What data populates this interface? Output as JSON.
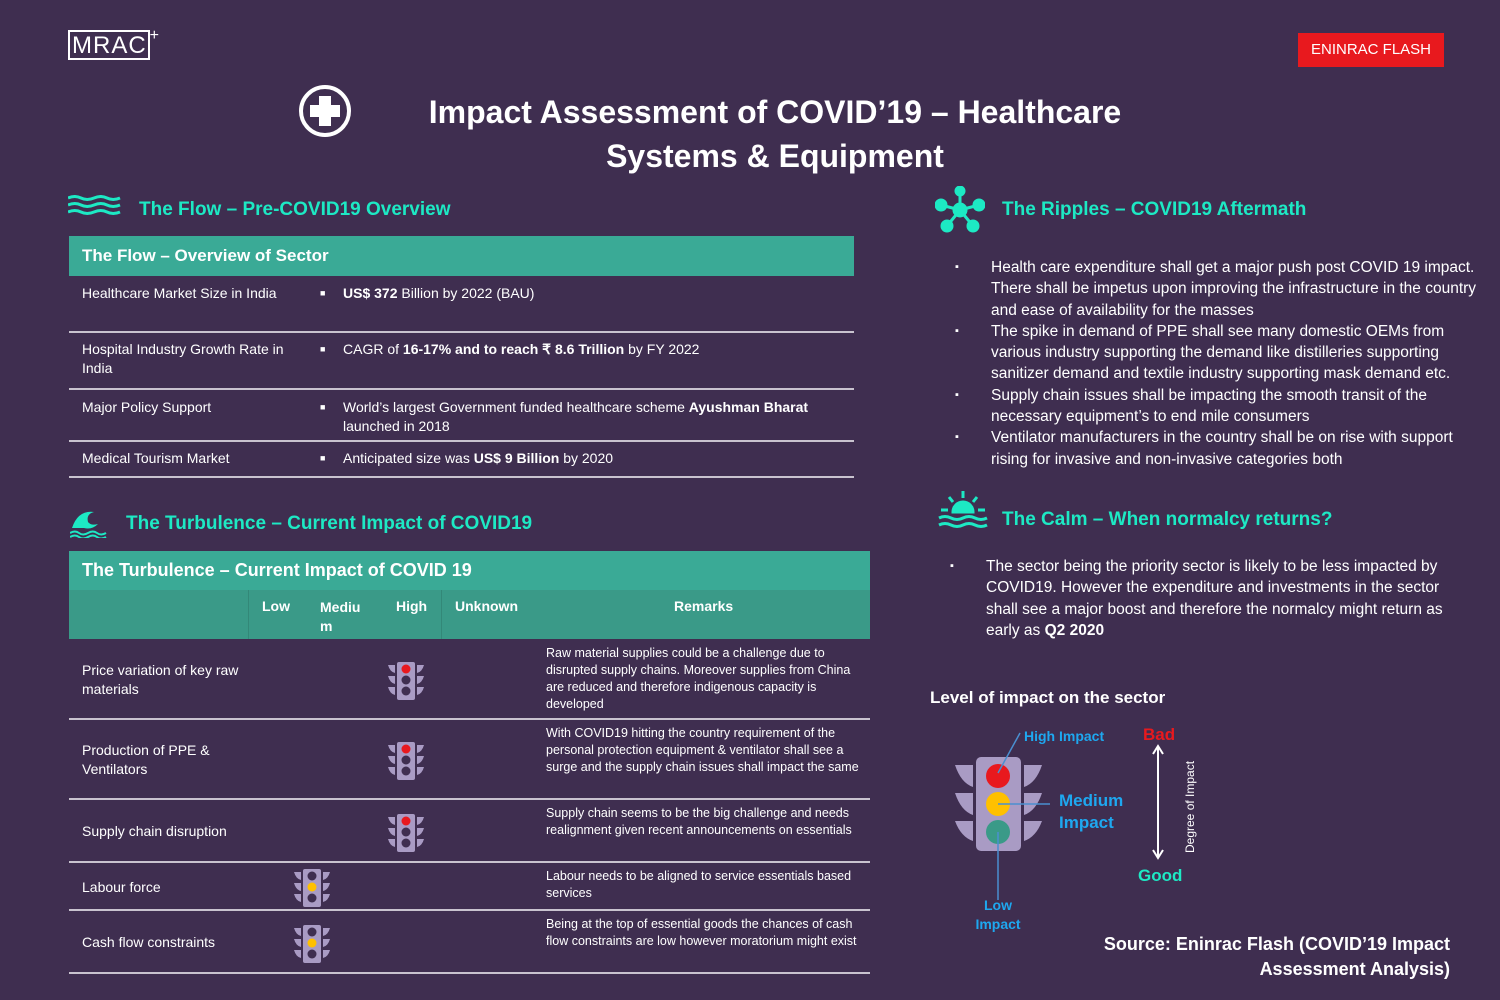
{
  "header": {
    "logo": "MRAC",
    "logo_plus": "+",
    "badge": "ENINRAC FLASH",
    "title": "Impact Assessment of COVID’19 – Healthcare Systems & Equipment"
  },
  "flow": {
    "section_title": "The Flow – Pre-COVID19 Overview",
    "table_title": "The Flow – Overview of Sector",
    "rows": [
      {
        "label": "Healthcare Market Size in India",
        "pre": "",
        "bold": "US$ 372",
        "post": " Billion by 2022 (BAU)"
      },
      {
        "label": "Hospital Industry Growth Rate in India",
        "pre": "CAGR of ",
        "bold": "16-17% and to reach ₹ 8.6 Trillion",
        "post": " by FY 2022"
      },
      {
        "label": "Major Policy Support",
        "pre": "World’s largest Government funded healthcare scheme ",
        "bold": "Ayushman Bharat",
        "post": " launched in 2018"
      },
      {
        "label": "Medical Tourism Market",
        "pre": "Anticipated size was ",
        "bold": "US$ 9 Billion",
        "post": " by 2020"
      }
    ]
  },
  "turbulence": {
    "section_title": "The Turbulence – Current Impact of COVID19",
    "table_title": "The Turbulence – Current Impact of COVID 19",
    "columns": {
      "low": "Low",
      "medium": "Mediu m",
      "high": "High",
      "unknown": "Unknown",
      "remarks": "Remarks"
    },
    "rows": [
      {
        "label": "Price variation of key raw materials",
        "level": "High",
        "lit": "red",
        "remark": "Raw material supplies could be a challenge due to disrupted supply chains. Moreover supplies from China are reduced and therefore indigenous capacity is developed"
      },
      {
        "label": "Production of PPE & Ventilators",
        "level": "High",
        "lit": "red",
        "remark": "With COVID19 hitting the country requirement of the personal protection equipment & ventilator shall see a surge and the supply chain issues shall impact the same"
      },
      {
        "label": "Supply chain disruption",
        "level": "High",
        "lit": "red",
        "remark": "Supply chain seems to be the big challenge and needs realignment given recent announcements on essentials"
      },
      {
        "label": "Labour force",
        "level": "Low",
        "lit": "yellow",
        "remark": "Labour needs to be aligned to service essentials based services"
      },
      {
        "label": "Cash flow constraints",
        "level": "Low",
        "lit": "yellow",
        "remark": "Being at the top of essential goods the chances of cash flow constraints are low however moratorium might exist"
      }
    ]
  },
  "ripples": {
    "section_title": "The Ripples – COVID19 Aftermath",
    "bullets": [
      "Health care expenditure shall get a major push post COVID 19 impact. There shall be impetus upon improving the infrastructure in the country and ease of availability for the masses",
      "The spike in demand of PPE shall see many domestic OEMs from various industry supporting the demand like distilleries supporting sanitizer demand and textile industry supporting mask demand etc.",
      "Supply chain issues shall be impacting the smooth transit of the necessary equipment’s to end mile consumers",
      "Ventilator manufacturers in the country shall be on rise with support rising for invasive and non-invasive categories both"
    ]
  },
  "calm": {
    "section_title": "The Calm – When normalcy returns?",
    "bullet_pre": "The sector being the priority sector is likely to be less impacted by COVID19. However the expenditure and investments in the sector shall see a major boost and therefore the normalcy might return as early as ",
    "bullet_bold": "Q2 2020"
  },
  "legend": {
    "title": "Level of impact on the sector",
    "high": "High Impact",
    "medium": "Medium Impact",
    "low": "Low Impact",
    "bad": "Bad",
    "good": "Good",
    "axis": "Degree of Impact"
  },
  "source": "Source: Eninrac Flash (COVID’19 Impact Assessment Analysis)",
  "colors": {
    "background": "#3f2e50",
    "accent": "#1de9c4",
    "table_header": "#3aaa96",
    "red": "#e8191e",
    "yellow": "#ffc000",
    "green": "#3a9a88"
  }
}
